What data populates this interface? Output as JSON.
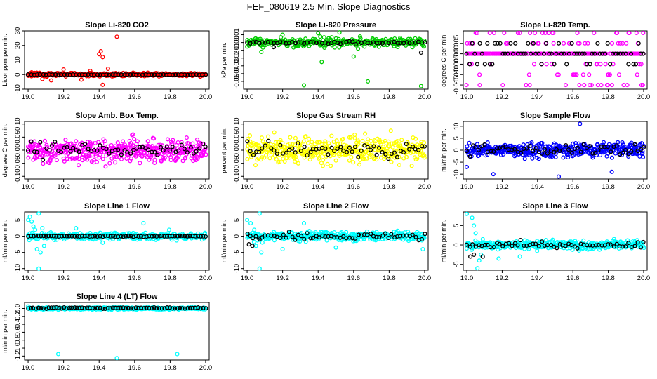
{
  "figure_title": "FEF_080619  2.5 Min. Slope Diagnostics",
  "colors": {
    "red": "#ff0000",
    "green": "#00cc00",
    "magenta": "#ff00ff",
    "yellow": "#ffff00",
    "blue": "#0000ff",
    "cyan": "#00ffff",
    "black": "#000000"
  },
  "chart_data": [
    {
      "id": "co2",
      "type": "scatter",
      "title": "Slope Li-820 CO2",
      "ylabel": "Licor ppm per min.",
      "color": "red",
      "xlim": [
        18.98,
        20.02
      ],
      "ylim": [
        -10,
        30
      ],
      "yticks": [
        -10,
        0,
        10,
        20,
        30
      ],
      "xticks": [
        19.0,
        19.2,
        19.4,
        19.6,
        19.8,
        20.0
      ],
      "series": [
        {
          "name": "colored",
          "color": "red",
          "center": 0,
          "spread": 1.2,
          "n": 300,
          "xrange": [
            19.0,
            20.0
          ],
          "extra": [
            [
              19.08,
              -3
            ],
            [
              19.13,
              -4
            ],
            [
              19.2,
              3.5
            ],
            [
              19.3,
              -3.5
            ],
            [
              19.42,
              -7
            ],
            [
              19.4,
              14
            ],
            [
              19.41,
              16
            ],
            [
              19.42,
              12
            ],
            [
              19.5,
              26
            ],
            [
              19.45,
              4
            ],
            [
              19.35,
              2.5
            ],
            [
              19.02,
              1.5
            ]
          ]
        },
        {
          "name": "black",
          "color": "black",
          "center": 0,
          "spread": 0.15,
          "n": 60,
          "xrange": [
            19.0,
            20.0
          ],
          "extra": []
        }
      ]
    },
    {
      "id": "press",
      "type": "scatter",
      "title": "Slope Li-820 Pressure",
      "ylabel": "kPa per min.",
      "color": "green",
      "xlim": [
        18.98,
        20.02
      ],
      "ylim": [
        -0.06,
        0.015
      ],
      "yticks": [
        -0.05,
        -0.04,
        -0.03,
        -0.02,
        -0.01,
        0.0,
        0.01
      ],
      "xticks": [
        19.0,
        19.2,
        19.4,
        19.6,
        19.8,
        20.0
      ],
      "series": [
        {
          "name": "colored",
          "color": "green",
          "center": 0,
          "spread": 0.006,
          "n": 320,
          "xrange": [
            19.0,
            20.0
          ],
          "extra": [
            [
              19.08,
              -0.012
            ],
            [
              19.42,
              -0.025
            ],
            [
              19.32,
              -0.055
            ],
            [
              19.68,
              -0.05
            ],
            [
              19.98,
              -0.056
            ],
            [
              19.4,
              0.012
            ],
            [
              19.52,
              0.013
            ],
            [
              19.6,
              -0.018
            ],
            [
              19.2,
              0.01
            ]
          ]
        },
        {
          "name": "black",
          "color": "black",
          "center": 0,
          "spread": 0.0015,
          "n": 60,
          "xrange": [
            19.0,
            20.0
          ],
          "extra": [
            [
              19.98,
              -0.013
            ],
            [
              19.15,
              -0.006
            ]
          ]
        }
      ]
    },
    {
      "id": "temp",
      "type": "scatter",
      "title": "Slope Li-820 Temp.",
      "ylabel": "degrees C per min.",
      "color": "magenta",
      "xlim": [
        18.98,
        20.02
      ],
      "ylim": [
        -0.017,
        0.011
      ],
      "yticks": [
        -0.015,
        -0.01,
        -0.005,
        0.0,
        0.005
      ],
      "xticks": [
        19.0,
        19.2,
        19.4,
        19.6,
        19.8,
        20.0
      ],
      "series": [
        {
          "name": "colored",
          "color": "magenta",
          "levels": [
            -0.015,
            -0.01,
            -0.005,
            0.0,
            0.005,
            0.01
          ],
          "n": 300,
          "xrange": [
            19.0,
            20.0
          ]
        },
        {
          "name": "black",
          "color": "black",
          "levels": [
            -0.005,
            0.0,
            0.005
          ],
          "n": 70,
          "xrange": [
            19.0,
            20.0
          ]
        }
      ]
    },
    {
      "id": "amb",
      "type": "scatter",
      "title": "Slope Amb. Box Temp.",
      "ylabel": "degrees C per min.",
      "color": "magenta",
      "xlim": [
        18.98,
        20.02
      ],
      "ylim": [
        -0.11,
        0.11
      ],
      "yticks": [
        -0.1,
        -0.05,
        0.0,
        0.05,
        0.1
      ],
      "xticks": [
        19.0,
        19.2,
        19.4,
        19.6,
        19.8,
        20.0
      ],
      "series": [
        {
          "name": "colored",
          "color": "magenta",
          "center": 0,
          "spread": 0.045,
          "n": 420,
          "xrange": [
            19.0,
            20.0
          ],
          "extra": []
        },
        {
          "name": "black",
          "color": "black",
          "center": 0,
          "spread": 0.03,
          "n": 60,
          "xrange": [
            19.0,
            20.0
          ],
          "extra": []
        }
      ]
    },
    {
      "id": "rh",
      "type": "scatter",
      "title": "Slope Gas Stream RH",
      "ylabel": "percent per min.",
      "color": "yellow",
      "xlim": [
        18.98,
        20.02
      ],
      "ylim": [
        -0.11,
        0.11
      ],
      "yticks": [
        -0.1,
        -0.05,
        0.0,
        0.05,
        0.1
      ],
      "xticks": [
        19.0,
        19.2,
        19.4,
        19.6,
        19.8,
        20.0
      ],
      "series": [
        {
          "name": "colored",
          "color": "yellow",
          "center": 0,
          "spread": 0.045,
          "n": 420,
          "xrange": [
            19.0,
            20.0
          ],
          "extra": []
        },
        {
          "name": "black",
          "color": "black",
          "center": 0,
          "spread": 0.03,
          "n": 60,
          "xrange": [
            19.0,
            20.0
          ],
          "extra": []
        }
      ]
    },
    {
      "id": "sample",
      "type": "scatter",
      "title": "Slope Sample Flow",
      "ylabel": "ml/min per min.",
      "color": "blue",
      "xlim": [
        18.98,
        20.02
      ],
      "ylim": [
        -12,
        12
      ],
      "yticks": [
        -10,
        -5,
        0,
        5,
        10
      ],
      "xticks": [
        19.0,
        19.2,
        19.4,
        19.6,
        19.8,
        20.0
      ],
      "series": [
        {
          "name": "colored",
          "color": "blue",
          "center": 0,
          "spread": 2.8,
          "n": 400,
          "xrange": [
            19.0,
            20.0
          ],
          "extra": [
            [
              19.15,
              -10
            ],
            [
              19.52,
              -11
            ],
            [
              19.82,
              -9
            ],
            [
              19.64,
              11
            ],
            [
              19.0,
              -7
            ]
          ]
        },
        {
          "name": "black",
          "color": "black",
          "center": 0,
          "spread": 2.2,
          "n": 60,
          "xrange": [
            19.0,
            20.0
          ],
          "extra": []
        }
      ]
    },
    {
      "id": "line1",
      "type": "scatter",
      "title": "Slope Line 1 Flow",
      "ylabel": "ml/min per min.",
      "color": "cyan",
      "xlim": [
        18.98,
        20.02
      ],
      "ylim": [
        -10.5,
        7.5
      ],
      "yticks": [
        -10,
        -5,
        0,
        5
      ],
      "xticks": [
        19.0,
        19.2,
        19.4,
        19.6,
        19.8,
        20.0
      ],
      "series": [
        {
          "name": "colored",
          "color": "cyan",
          "center": 0,
          "spread": 1.0,
          "n": 360,
          "xrange": [
            19.0,
            20.0
          ],
          "extra": [
            [
              19.0,
              5
            ],
            [
              19.01,
              6
            ],
            [
              19.02,
              4.5
            ],
            [
              19.03,
              3
            ],
            [
              19.04,
              2
            ],
            [
              19.06,
              7
            ],
            [
              19.07,
              -5
            ],
            [
              19.06,
              -10
            ],
            [
              19.05,
              -4
            ],
            [
              19.09,
              -3
            ],
            [
              19.08,
              2.5
            ],
            [
              19.27,
              2.5
            ],
            [
              19.42,
              -2
            ],
            [
              19.65,
              4
            ]
          ]
        },
        {
          "name": "black",
          "color": "black",
          "center": 0,
          "spread": 0.15,
          "n": 70,
          "xrange": [
            19.0,
            20.0
          ],
          "extra": []
        }
      ]
    },
    {
      "id": "line2",
      "type": "scatter",
      "title": "Slope Line 2 Flow",
      "ylabel": "ml/min per min.",
      "color": "cyan",
      "xlim": [
        18.98,
        20.02
      ],
      "ylim": [
        -10.5,
        7.5
      ],
      "yticks": [
        -10,
        -5,
        0,
        5
      ],
      "xticks": [
        19.0,
        19.2,
        19.4,
        19.6,
        19.8,
        20.0
      ],
      "series": [
        {
          "name": "colored",
          "color": "cyan",
          "center": 0,
          "spread": 1.4,
          "n": 380,
          "xrange": [
            19.0,
            20.0
          ],
          "extra": [
            [
              19.0,
              5
            ],
            [
              19.02,
              4
            ],
            [
              19.04,
              2
            ],
            [
              19.07,
              7
            ],
            [
              19.07,
              -10
            ],
            [
              19.08,
              -5
            ],
            [
              19.05,
              -3
            ],
            [
              19.2,
              -4
            ],
            [
              19.32,
              4
            ],
            [
              19.5,
              -3.5
            ],
            [
              19.99,
              -4
            ]
          ]
        },
        {
          "name": "black",
          "color": "black",
          "center": 0,
          "spread": 1.0,
          "n": 60,
          "xrange": [
            19.0,
            20.0
          ],
          "extra": [
            [
              19.01,
              -2.5
            ],
            [
              19.03,
              -3
            ],
            [
              19.07,
              -1
            ]
          ]
        }
      ]
    },
    {
      "id": "line3",
      "type": "scatter",
      "title": "Slope Line 3 Flow",
      "ylabel": "ml/min per min.",
      "color": "cyan",
      "xlim": [
        18.98,
        20.02
      ],
      "ylim": [
        -6.5,
        8.5
      ],
      "yticks": [
        -5,
        0,
        5
      ],
      "xticks": [
        19.0,
        19.2,
        19.4,
        19.6,
        19.8,
        20.0
      ],
      "series": [
        {
          "name": "colored",
          "color": "cyan",
          "center": 0,
          "spread": 1.1,
          "n": 380,
          "xrange": [
            19.0,
            20.0
          ],
          "extra": [
            [
              19.0,
              8
            ],
            [
              19.03,
              7
            ],
            [
              19.04,
              5
            ],
            [
              19.05,
              3
            ],
            [
              19.07,
              -4
            ],
            [
              19.06,
              -6
            ],
            [
              19.08,
              -2.5
            ],
            [
              19.3,
              -3
            ],
            [
              19.35,
              -1
            ],
            [
              19.18,
              -3.5
            ]
          ]
        },
        {
          "name": "black",
          "color": "black",
          "center": 0,
          "spread": 0.8,
          "n": 60,
          "xrange": [
            19.0,
            20.0
          ],
          "extra": [
            [
              19.02,
              -3
            ],
            [
              19.04,
              -2.5
            ],
            [
              19.09,
              -3
            ]
          ]
        }
      ]
    },
    {
      "id": "line4",
      "type": "scatter",
      "title": "Slope Line 4 (LT) Flow",
      "ylabel": "ml/min per min.",
      "color": "cyan",
      "xlim": [
        18.98,
        20.02
      ],
      "ylim": [
        -1.3,
        0.15
      ],
      "yticks": [
        -1.2,
        -1.0,
        -0.8,
        -0.6,
        -0.4,
        -0.2,
        0.0
      ],
      "xticks": [
        19.0,
        19.2,
        19.4,
        19.6,
        19.8,
        20.0
      ],
      "series": [
        {
          "name": "colored",
          "color": "cyan",
          "center": 0,
          "spread": 0.03,
          "n": 360,
          "xrange": [
            19.0,
            20.0
          ],
          "extra": [
            [
              19.17,
              -1.15
            ],
            [
              19.84,
              -1.15
            ],
            [
              19.5,
              -1.25
            ],
            [
              19.0,
              0.05
            ]
          ]
        },
        {
          "name": "black",
          "color": "black",
          "center": 0.01,
          "spread": 0.02,
          "n": 70,
          "xrange": [
            19.0,
            20.0
          ],
          "extra": []
        }
      ]
    }
  ]
}
